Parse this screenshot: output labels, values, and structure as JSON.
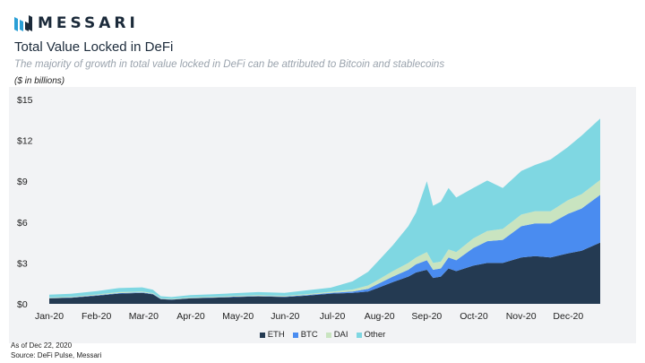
{
  "brand": {
    "name": "MESSARI",
    "logo_icon": "messari-logo-icon"
  },
  "header": {
    "title": "Total Value Locked in DeFi",
    "subtitle": "The majority of growth in total value locked in DeFi can be attributed to Bitcoin and stablecoins",
    "units": "($ in billions)"
  },
  "footer": {
    "as_of": "As of Dec 22, 2020",
    "source": "Source: DeFi Pulse, Messari"
  },
  "colors": {
    "ETH": "#243a52",
    "BTC": "#4a8cf0",
    "DAI": "#c9e4c0",
    "Other": "#7fd7e2"
  },
  "chart_data": {
    "type": "area",
    "stacked": true,
    "x_labels": [
      "Jan-20",
      "Feb-20",
      "Mar-20",
      "Apr-20",
      "May-20",
      "Jun-20",
      "Jul-20",
      "Aug-20",
      "Sep-20",
      "Oct-20",
      "Nov-20",
      "Dec-20"
    ],
    "x": [
      "2020-01-01",
      "2020-01-15",
      "2020-02-01",
      "2020-02-15",
      "2020-03-01",
      "2020-03-08",
      "2020-03-13",
      "2020-03-20",
      "2020-04-01",
      "2020-04-15",
      "2020-05-01",
      "2020-05-15",
      "2020-06-01",
      "2020-06-15",
      "2020-07-01",
      "2020-07-15",
      "2020-07-25",
      "2020-08-01",
      "2020-08-10",
      "2020-08-20",
      "2020-08-25",
      "2020-09-01",
      "2020-09-05",
      "2020-09-10",
      "2020-09-15",
      "2020-09-20",
      "2020-10-01",
      "2020-10-10",
      "2020-10-20",
      "2020-11-01",
      "2020-11-10",
      "2020-11-20",
      "2020-12-01",
      "2020-12-10",
      "2020-12-22"
    ],
    "series": [
      {
        "name": "ETH",
        "values": [
          0.4,
          0.45,
          0.6,
          0.75,
          0.8,
          0.7,
          0.35,
          0.3,
          0.4,
          0.45,
          0.5,
          0.55,
          0.5,
          0.6,
          0.75,
          0.8,
          0.9,
          1.2,
          1.6,
          2.0,
          2.3,
          2.5,
          1.9,
          2.0,
          2.6,
          2.4,
          2.8,
          3.0,
          3.0,
          3.4,
          3.5,
          3.4,
          3.7,
          3.9,
          4.5
        ]
      },
      {
        "name": "BTC",
        "values": [
          0.02,
          0.02,
          0.03,
          0.04,
          0.04,
          0.03,
          0.02,
          0.02,
          0.02,
          0.02,
          0.03,
          0.03,
          0.03,
          0.04,
          0.06,
          0.1,
          0.2,
          0.3,
          0.4,
          0.5,
          0.6,
          0.7,
          0.6,
          0.6,
          0.8,
          0.8,
          1.3,
          1.6,
          1.7,
          2.3,
          2.4,
          2.5,
          2.9,
          3.1,
          3.5
        ]
      },
      {
        "name": "DAI",
        "values": [
          0.05,
          0.05,
          0.06,
          0.07,
          0.07,
          0.06,
          0.04,
          0.04,
          0.05,
          0.05,
          0.06,
          0.06,
          0.06,
          0.07,
          0.08,
          0.15,
          0.25,
          0.3,
          0.4,
          0.5,
          0.5,
          0.6,
          0.5,
          0.5,
          0.6,
          0.6,
          0.7,
          0.75,
          0.8,
          0.85,
          0.9,
          0.9,
          1.0,
          1.05,
          1.1
        ]
      },
      {
        "name": "Other",
        "values": [
          0.2,
          0.22,
          0.25,
          0.3,
          0.3,
          0.25,
          0.15,
          0.14,
          0.17,
          0.18,
          0.2,
          0.22,
          0.22,
          0.28,
          0.3,
          0.6,
          1.0,
          1.4,
          1.9,
          2.7,
          3.3,
          5.2,
          4.2,
          4.4,
          4.5,
          4.0,
          3.7,
          3.7,
          3.0,
          3.2,
          3.4,
          3.8,
          3.9,
          4.3,
          4.5
        ]
      }
    ],
    "y_ticks": [
      "$0",
      "$3",
      "$6",
      "$9",
      "$12",
      "$15"
    ],
    "ylim": [
      0,
      15
    ],
    "legend": [
      "ETH",
      "BTC",
      "DAI",
      "Other"
    ],
    "legend_position": "bottom",
    "grid": false
  }
}
